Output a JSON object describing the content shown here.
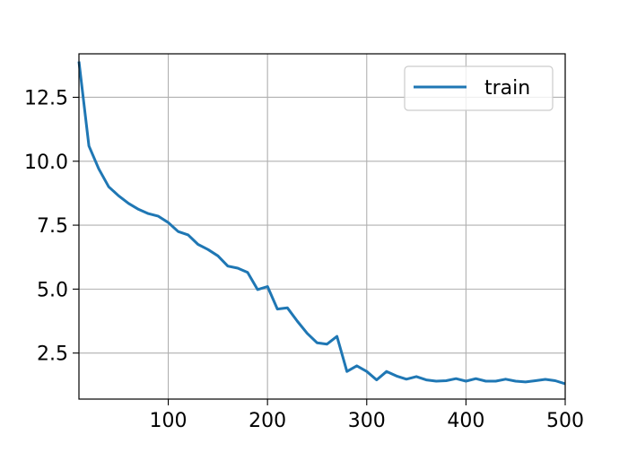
{
  "chart_data": {
    "type": "line",
    "title": "",
    "xlabel": "",
    "ylabel": "",
    "xlim": [
      10,
      500
    ],
    "ylim": [
      0.7,
      14.2
    ],
    "grid": true,
    "legend_position": "top-right",
    "x_ticks": [
      {
        "value": 100,
        "label": "100"
      },
      {
        "value": 200,
        "label": "200"
      },
      {
        "value": 300,
        "label": "300"
      },
      {
        "value": 400,
        "label": "400"
      },
      {
        "value": 500,
        "label": "500"
      }
    ],
    "y_ticks": [
      {
        "value": 2.5,
        "label": "2.5"
      },
      {
        "value": 5.0,
        "label": "5.0"
      },
      {
        "value": 7.5,
        "label": "7.5"
      },
      {
        "value": 10.0,
        "label": "10.0"
      },
      {
        "value": 12.5,
        "label": "12.5"
      }
    ],
    "series": [
      {
        "name": "train",
        "color": "#1f77b4",
        "x": [
          10,
          20,
          30,
          40,
          50,
          60,
          70,
          80,
          90,
          100,
          110,
          120,
          130,
          140,
          150,
          160,
          170,
          180,
          190,
          200,
          210,
          220,
          230,
          240,
          250,
          260,
          270,
          280,
          290,
          300,
          310,
          320,
          330,
          340,
          350,
          360,
          370,
          380,
          390,
          400,
          410,
          420,
          430,
          440,
          450,
          460,
          470,
          480,
          490,
          500
        ],
        "y": [
          13.9,
          10.6,
          9.7,
          9.0,
          8.65,
          8.35,
          8.12,
          7.95,
          7.85,
          7.6,
          7.25,
          7.12,
          6.75,
          6.55,
          6.3,
          5.9,
          5.82,
          5.65,
          4.98,
          5.1,
          4.22,
          4.27,
          3.75,
          3.27,
          2.9,
          2.85,
          3.15,
          1.78,
          2.0,
          1.78,
          1.45,
          1.78,
          1.6,
          1.48,
          1.58,
          1.45,
          1.4,
          1.42,
          1.5,
          1.4,
          1.5,
          1.4,
          1.4,
          1.48,
          1.4,
          1.37,
          1.42,
          1.47,
          1.42,
          1.3
        ]
      }
    ]
  }
}
